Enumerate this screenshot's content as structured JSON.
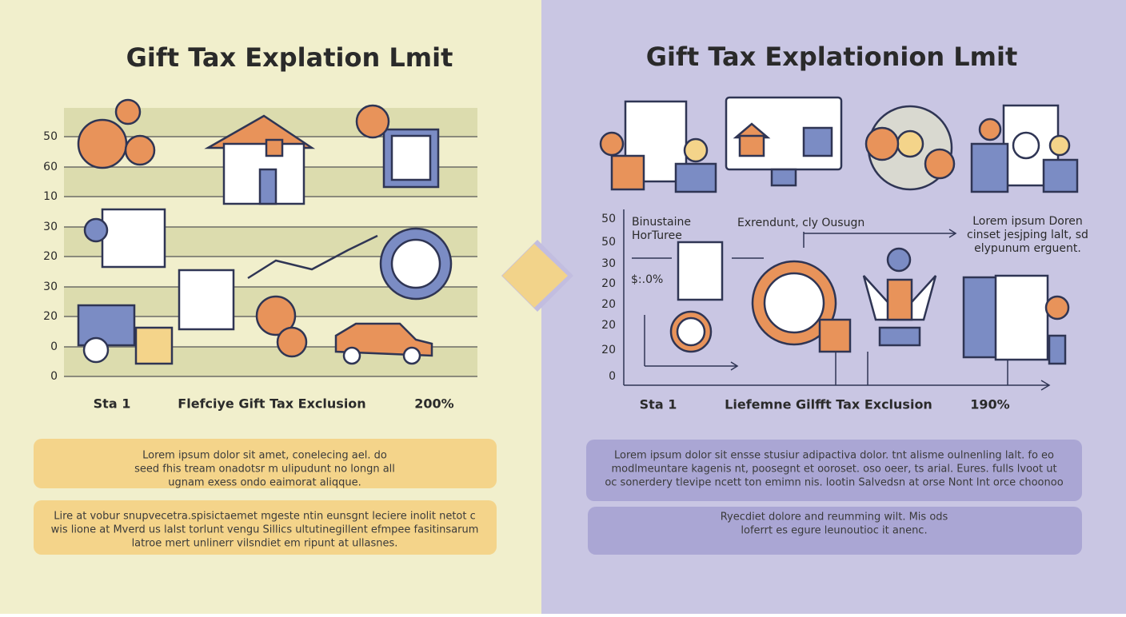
{
  "left": {
    "title": "Gift Tax Explation Lmit",
    "axis_labels": [
      "50",
      "60",
      "10",
      "30",
      "20",
      "30",
      "20",
      "0",
      "0"
    ],
    "footer_labels": [
      "Sta 1",
      "Flefciye Gift Tax Exclusion",
      "200%"
    ],
    "paragraphs": [
      [
        "Lorem ipsum dolor sit amet, conelecing ael. do",
        "seed fhis tream onadotsr m ulipudunt no longn all",
        "ugnam exess ondo eaimorat aliqque."
      ],
      [
        "Lire at vobur snupvecetra.spisictaemet mgeste ntin eunsgnt leciere inolit netot c",
        "wis lione at Mverd us lalst torlunt vengu Sillics ultutinegillent efmpee fasitinsarum",
        "latroe mert unlinerr vilsndiet em ripunt at ullasnes."
      ]
    ]
  },
  "right": {
    "title": "Gift Tax Explationion Lmit",
    "axis_labels": [
      "50",
      "50",
      "30",
      "20",
      "20",
      "20",
      "20",
      "0"
    ],
    "annotations": [
      [
        "Binustaine",
        "HorTuree"
      ],
      [
        "$:.0%"
      ],
      [
        "Exrendunt, cly Ousugn"
      ],
      [
        "Lorem ipsum Doren",
        "cinset jesjping lalt, sd",
        "elypunum erguent."
      ]
    ],
    "footer_labels": [
      "Sta 1",
      "Liefemne Gilfft Tax Exclusion",
      "190%"
    ],
    "paragraphs": [
      [
        "Lorem ipsum dolor sit ensse stusiur adipactiva dolor. tnt alisme oulnenling lalt. fo eo",
        "modlmeuntare kagenis nt, poosegnt et ooroset. oso oeer, ts arial. Eures. fulls lvoot ut",
        "oc sonerdery tlevipe ncett ton emimn nis. lootin Salvedsn at orse Nont lnt orce choonoo"
      ],
      [
        "Ryecdiet dolore and reumming wilt. Mis ods",
        "loferrt es egure leunoutioc it anenc."
      ]
    ]
  }
}
